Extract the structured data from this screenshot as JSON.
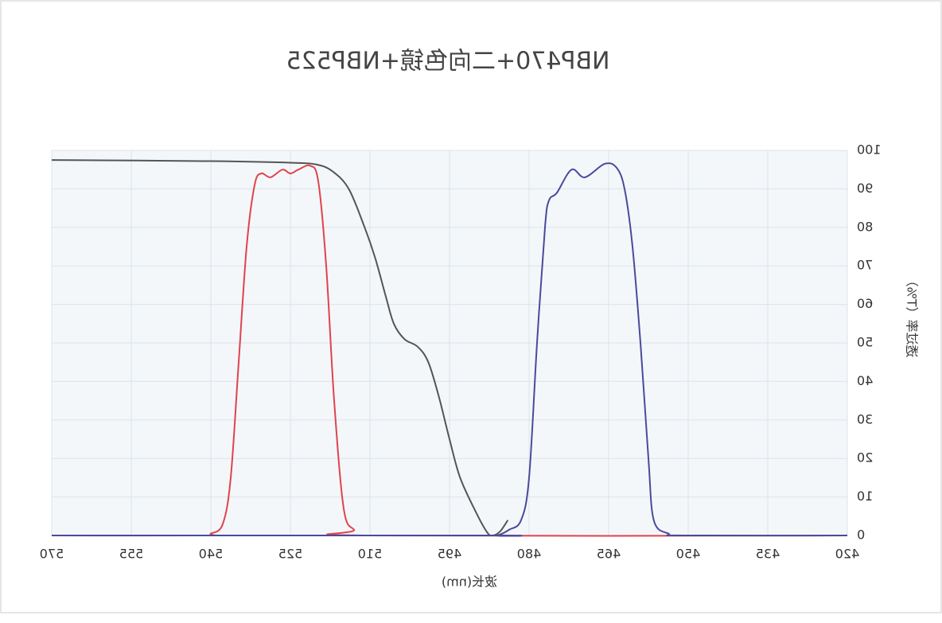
{
  "chart_data": {
    "type": "line",
    "title": "NBP470+二向色镜+NBP525",
    "x_label": "波长(nm)",
    "y_label": "透过率（T%）",
    "xlim": [
      420,
      570
    ],
    "xticks": [
      420,
      435,
      450,
      465,
      480,
      495,
      510,
      525,
      540,
      555,
      570
    ],
    "ylim": [
      0,
      100
    ],
    "yticks": [
      0,
      10,
      20,
      30,
      40,
      50,
      60,
      70,
      80,
      90,
      100
    ],
    "grid": true,
    "mirrored": true,
    "series": [
      {
        "color": "#555555",
        "x": [
          570,
          540,
          525,
          520,
          517,
          514,
          511,
          509,
          507,
          505.5,
          503.5,
          501,
          499,
          497,
          495,
          493,
          490,
          488,
          487,
          485.5,
          484
        ],
        "values": [
          97.5,
          97.2,
          96.8,
          96.3,
          94.5,
          90,
          80,
          72,
          62,
          55,
          51,
          49,
          45,
          36,
          25,
          15,
          6,
          1,
          0,
          1,
          4
        ]
      },
      {
        "color": "#e0434b",
        "x": [
          570,
          542,
          540,
          537.75,
          536.25,
          534.75,
          533.25,
          531.75,
          530.5,
          528.75,
          526.5,
          525,
          523.5,
          521.25,
          519.75,
          518.25,
          516.75,
          514.95,
          513,
          510.75,
          420
        ],
        "values": [
          0,
          0,
          0.5,
          3,
          15,
          45,
          75,
          91,
          94,
          93,
          95,
          94,
          95,
          96,
          92,
          70,
          35,
          7,
          1.5,
          0,
          0
        ]
      },
      {
        "color": "#4a4a9a",
        "x": [
          570,
          488,
          486,
          483.75,
          481.5,
          480,
          478.5,
          477,
          476.25,
          474.75,
          472,
          469.5,
          465.75,
          463.5,
          462,
          460.5,
          459,
          457.5,
          456.5,
          453.75,
          450.75,
          420
        ],
        "values": [
          0,
          0,
          0,
          1.5,
          4,
          15,
          50,
          80,
          87,
          89,
          95,
          93,
          96.5,
          95.5,
          90,
          75,
          50,
          20,
          4,
          0.5,
          0,
          0
        ]
      }
    ]
  }
}
